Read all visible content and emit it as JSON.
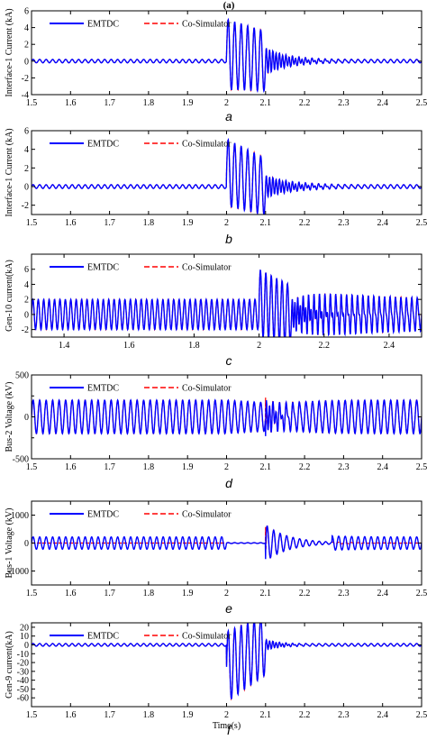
{
  "figure_label": "(a)",
  "legend_entries": [
    "EMTDC",
    "Co-Simulator"
  ],
  "colors": {
    "emtdc": "#0000ff",
    "cosim": "#ff0000",
    "axis": "#000000"
  },
  "chart_data": [
    {
      "id": "a",
      "panel_label": "a",
      "type": "line",
      "ylabel": "Interface-1 Current (kA)",
      "xlabel": "",
      "xlim": [
        1.5,
        2.5
      ],
      "ylim": [
        -4,
        6
      ],
      "xticks": [
        "1.5",
        "1.6",
        "1.7",
        "1.8",
        "1.9",
        "2",
        "2.1",
        "2.2",
        "2.3",
        "2.4",
        "2.5"
      ],
      "yticks": [
        "6",
        "4",
        "2",
        "0",
        "-2",
        "-4"
      ],
      "legend": "top-left",
      "grid": false,
      "series": [
        {
          "name": "EMTDC"
        },
        {
          "name": "Co-Simulator"
        }
      ],
      "signal": {
        "freq_hz": 60,
        "pre_amp": 0.2,
        "fault_start": 2.0,
        "fault_clear": 2.1,
        "fault_amp": 4.2,
        "fault_offset": 0.8,
        "post_amp": 1.6,
        "post_decay": 0.06
      }
    },
    {
      "id": "b",
      "panel_label": "b",
      "type": "line",
      "ylabel": "Interface-1 Current (kA)",
      "xlabel": "",
      "xlim": [
        1.5,
        2.5
      ],
      "ylim": [
        -3,
        6
      ],
      "xticks": [
        "1.5",
        "1.6",
        "1.7",
        "1.8",
        "1.9",
        "2",
        "2.1",
        "2.2",
        "2.3",
        "2.4",
        "2.5"
      ],
      "yticks": [
        "6",
        "4",
        "2",
        "0",
        "-2"
      ],
      "legend": "top-left",
      "grid": false,
      "series": [
        {
          "name": "EMTDC"
        },
        {
          "name": "Co-Simulator"
        }
      ],
      "signal": {
        "freq_hz": 60,
        "pre_amp": 0.2,
        "fault_start": 2.0,
        "fault_clear": 2.1,
        "fault_amp": 3.6,
        "fault_offset": 1.5,
        "post_amp": 1.2,
        "post_decay": 0.07
      }
    },
    {
      "id": "c",
      "panel_label": "c",
      "type": "line",
      "ylabel": "Gen-10 current(kA)",
      "xlabel": "",
      "xlim": [
        1.3,
        2.5
      ],
      "ylim": [
        -3,
        8
      ],
      "xticks": [
        "1.4",
        "1.6",
        "1.8",
        "2",
        "2.2",
        "2.4"
      ],
      "yticks": [
        "6",
        "4",
        "2",
        "0",
        "-2"
      ],
      "legend": "top-left",
      "grid": false,
      "series": [
        {
          "name": "EMTDC"
        },
        {
          "name": "Co-Simulator"
        }
      ],
      "signal": {
        "freq_hz": 60,
        "pre_amp": 2.0,
        "fault_start": 2.0,
        "fault_clear": 2.1,
        "fault_amp": 4.5,
        "fault_offset": 1.5,
        "post_amp": 2.0,
        "post_decay": 0.3
      }
    },
    {
      "id": "d",
      "panel_label": "d",
      "type": "line",
      "ylabel": "Bus-2 Voltage (kV)",
      "xlabel": "",
      "xlim": [
        1.5,
        2.5
      ],
      "ylim": [
        -500,
        500
      ],
      "xticks": [
        "1.5",
        "1.6",
        "1.7",
        "1.8",
        "1.9",
        "2",
        "2.1",
        "2.2",
        "2.3",
        "2.4",
        "2.5"
      ],
      "yticks": [
        "500",
        "0",
        "-500"
      ],
      "yminor": [
        "-500",
        "-250",
        "0",
        "250",
        "500"
      ],
      "legend": "top-left",
      "grid": false,
      "series": [
        {
          "name": "EMTDC"
        },
        {
          "name": "Co-Simulator"
        }
      ],
      "signal": {
        "freq_hz": 60,
        "pre_amp": 200,
        "fault_start": 2.0,
        "fault_clear": 2.1,
        "fault_amp": 200,
        "fault_offset": 0,
        "post_amp": 200,
        "post_decay": 0.05,
        "spike": 480
      }
    },
    {
      "id": "e",
      "panel_label": "e",
      "type": "line",
      "ylabel": "Bus-1 Voltage (kV)",
      "xlabel": "",
      "xlim": [
        1.5,
        2.5
      ],
      "ylim": [
        -1500,
        1500
      ],
      "xticks": [
        "1.5",
        "1.6",
        "1.7",
        "1.8",
        "1.9",
        "2",
        "2.1",
        "2.2",
        "2.3",
        "2.4",
        "2.5"
      ],
      "yticks": [
        "1000",
        "0",
        "-1000"
      ],
      "legend": "top-left",
      "grid": false,
      "series": [
        {
          "name": "EMTDC"
        },
        {
          "name": "Co-Simulator"
        }
      ],
      "signal": {
        "freq_hz": 60,
        "pre_amp": 220,
        "fault_start": 2.0,
        "fault_clear": 2.1,
        "fault_amp": 15,
        "fault_offset": 0,
        "post_amp": 650,
        "post_decay": 0.06,
        "spike": 1200,
        "cosim_start": 2.0
      }
    },
    {
      "id": "f",
      "panel_label": "f",
      "type": "line",
      "ylabel": "Gen-9 current(kA)",
      "xlabel": "Time(s)",
      "xlim": [
        1.5,
        2.5
      ],
      "ylim": [
        -70,
        25
      ],
      "xticks": [
        "1.5",
        "1.6",
        "1.7",
        "1.8",
        "1.9",
        "2",
        "2.1",
        "2.2",
        "2.3",
        "2.4",
        "2.5"
      ],
      "yticks": [
        "20",
        "10",
        "0",
        "-10",
        "-20",
        "-30",
        "-40",
        "-50",
        "-60"
      ],
      "legend": "top-left",
      "grid": false,
      "series": [
        {
          "name": "EMTDC"
        },
        {
          "name": "Co-Simulator"
        }
      ],
      "signal": {
        "freq_hz": 60,
        "pre_amp": 1.5,
        "fault_start": 2.0,
        "fault_clear": 2.1,
        "fault_amp": 40,
        "fault_offset": -25,
        "post_amp": 6,
        "post_decay": 0.04
      }
    }
  ]
}
